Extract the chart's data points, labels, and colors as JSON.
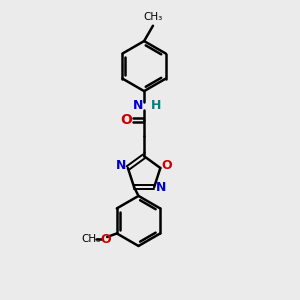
{
  "background_color": "#ebebeb",
  "bond_color": "#000000",
  "N_color": "#0000cc",
  "O_color": "#cc0000",
  "NH_color": "#008080",
  "figsize": [
    3.0,
    3.0
  ],
  "dpi": 100,
  "xlim": [
    0,
    10
  ],
  "ylim": [
    0,
    10
  ]
}
